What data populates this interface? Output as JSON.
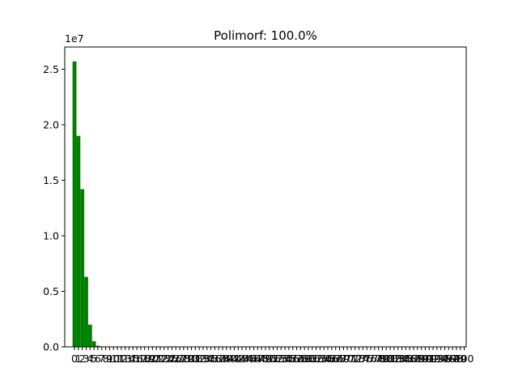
{
  "chart_data": {
    "type": "bar",
    "title": "Polimorf: 100.0%",
    "scale_label": "1e7",
    "xlabel": "",
    "ylabel": "",
    "ylim": [
      0,
      27000000
    ],
    "xlim": [
      -2.5,
      100.5
    ],
    "bar_color": "#008000",
    "grid": false,
    "legend": "none",
    "y_ticks": [
      {
        "value": 0,
        "label": "0.0"
      },
      {
        "value": 5000000,
        "label": "0.5"
      },
      {
        "value": 10000000,
        "label": "1.0"
      },
      {
        "value": 15000000,
        "label": "1.5"
      },
      {
        "value": 20000000,
        "label": "2.0"
      },
      {
        "value": 25000000,
        "label": "2.5"
      }
    ],
    "x": [
      0,
      1,
      2,
      3,
      4,
      5,
      6,
      7,
      8,
      9,
      10,
      11,
      12,
      13,
      14,
      15,
      16,
      17,
      18,
      19,
      20,
      21,
      22,
      23,
      24,
      25,
      26,
      27,
      28,
      29,
      30,
      31,
      32,
      33,
      34,
      35,
      36,
      37,
      38,
      39,
      40,
      41,
      42,
      43,
      44,
      45,
      46,
      47,
      48,
      49,
      50,
      51,
      52,
      53,
      54,
      55,
      56,
      57,
      58,
      59,
      60,
      61,
      62,
      63,
      64,
      65,
      66,
      67,
      68,
      69,
      70,
      71,
      72,
      73,
      74,
      75,
      76,
      77,
      78,
      79,
      80,
      81,
      82,
      83,
      84,
      85,
      86,
      87,
      88,
      89,
      90,
      91,
      92,
      93,
      94,
      95,
      96,
      97,
      98,
      99,
      100
    ],
    "values": [
      25700000,
      19000000,
      14200000,
      6300000,
      2000000,
      500000,
      100000,
      30000,
      10000,
      5000,
      2000,
      1000,
      500,
      200,
      100,
      0,
      0,
      0,
      0,
      0,
      0,
      0,
      0,
      0,
      0,
      0,
      0,
      0,
      0,
      0,
      0,
      0,
      0,
      0,
      0,
      0,
      0,
      0,
      0,
      0,
      0,
      0,
      0,
      0,
      0,
      0,
      0,
      0,
      0,
      0,
      0,
      0,
      0,
      0,
      0,
      0,
      0,
      0,
      0,
      0,
      0,
      0,
      0,
      0,
      0,
      0,
      0,
      0,
      0,
      0,
      0,
      0,
      0,
      0,
      0,
      0,
      0,
      0,
      0,
      0,
      0,
      0,
      0,
      0,
      0,
      0,
      0,
      0,
      0,
      0,
      0,
      0,
      0,
      0,
      0,
      0,
      0,
      0,
      0,
      0,
      0
    ],
    "x_tick_labels": [
      "0",
      "1",
      "2",
      "3",
      "4",
      "5",
      "6",
      "7",
      "8",
      "9",
      "10",
      "11",
      "12",
      "13",
      "14",
      "15",
      "16",
      "17",
      "18",
      "19",
      "20",
      "21",
      "22",
      "23",
      "24",
      "25",
      "26",
      "27",
      "28",
      "29",
      "30",
      "31",
      "32",
      "33",
      "34",
      "35",
      "36",
      "37",
      "38",
      "39",
      "40",
      "41",
      "42",
      "43",
      "44",
      "45",
      "46",
      "47",
      "48",
      "49",
      "50",
      "51",
      "52",
      "53",
      "54",
      "55",
      "56",
      "57",
      "58",
      "59",
      "60",
      "61",
      "62",
      "63",
      "64",
      "65",
      "66",
      "67",
      "68",
      "69",
      "70",
      "71",
      "72",
      "73",
      "74",
      "75",
      "76",
      "77",
      "78",
      "79",
      "80",
      "81",
      "82",
      "83",
      "84",
      "85",
      "86",
      "87",
      "88",
      "89",
      "90",
      "91",
      "92",
      "93",
      "94",
      "95",
      "96",
      "97",
      "98",
      "99",
      "100"
    ]
  }
}
